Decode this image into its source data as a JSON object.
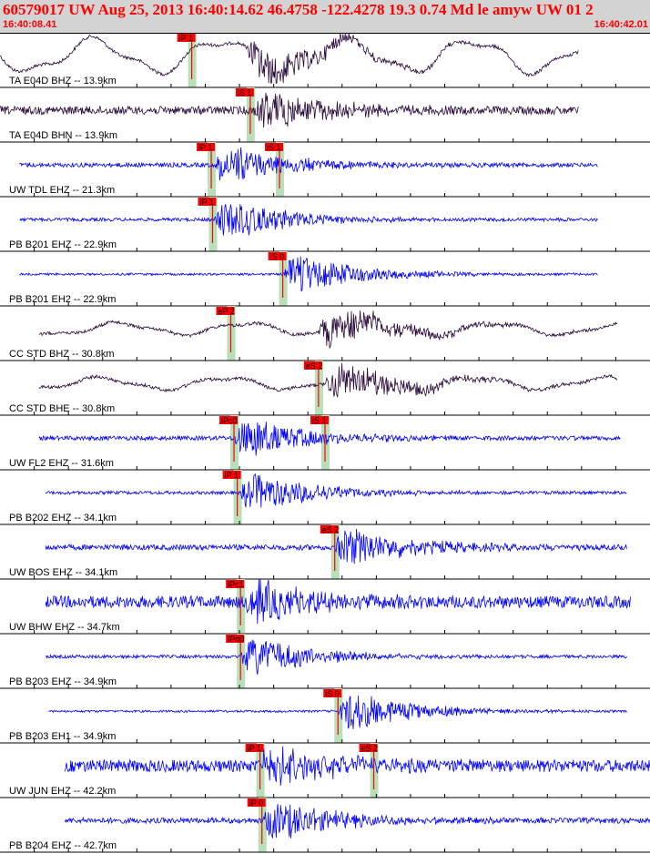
{
  "header": {
    "title": "60579017 UW Aug 25, 2013 16:40:14.62    46.4758 -122.4278 19.3 0.74 Md le amyw UW 01   2",
    "start_time": "16:40:08.41",
    "end_time": "16:40:42.01"
  },
  "colors": {
    "header_bg": "#d3d3d3",
    "header_text": "#ff0000",
    "trace_broadband": "#2a0a3a",
    "trace_short_period": "#0000ff",
    "pick_flag": "#ff0000",
    "pick_window": "#b8e0b8",
    "grid": "#000000"
  },
  "chart_data": {
    "type": "line",
    "xlim": [
      "16:40:08.41",
      "16:40:42.01"
    ],
    "traces": [
      {
        "label": "TA E04D BHZ -- 13.9km",
        "color": "broadband",
        "start": 0.0,
        "end": 0.89,
        "amp": 0.55,
        "longperiod": true,
        "onset": 0.38,
        "pick_p": {
          "text": "iP 1",
          "pos": 0.295
        },
        "pick_s": null
      },
      {
        "label": "TA E04D BHN -- 13.9km",
        "color": "broadband",
        "start": 0.0,
        "end": 0.89,
        "amp": 0.15,
        "longperiod": false,
        "onset": 0.39,
        "pick_p": null,
        "pick_s": {
          "text": "iS 1",
          "pos": 0.385
        }
      },
      {
        "label": "UW TDL EHZ -- 21.3km",
        "color": "short",
        "start": 0.03,
        "end": 0.92,
        "amp": 0.08,
        "longperiod": false,
        "onset": 0.33,
        "pick_p": {
          "text": "iP 1",
          "pos": 0.325
        },
        "pick_s": {
          "text": "iS 1",
          "pos": 0.43
        }
      },
      {
        "label": "PB B201 EHZ -- 22.9km",
        "color": "short",
        "start": 0.03,
        "end": 0.92,
        "amp": 0.06,
        "longperiod": false,
        "onset": 0.33,
        "pick_p": {
          "text": "iP 1",
          "pos": 0.327
        },
        "pick_s": null
      },
      {
        "label": "PB B201 EH2 -- 22.9km",
        "color": "short",
        "start": 0.03,
        "end": 0.92,
        "amp": 0.04,
        "longperiod": false,
        "onset": 0.435,
        "pick_p": null,
        "pick_s": {
          "text": "iS 0",
          "pos": 0.435
        }
      },
      {
        "label": "CC STD BHZ -- 30.8km",
        "color": "broadband",
        "start": 0.06,
        "end": 0.95,
        "amp": 0.2,
        "longperiod": true,
        "onset": 0.49,
        "pick_p": {
          "text": "eP 2",
          "pos": 0.355
        },
        "pick_s": null
      },
      {
        "label": "CC STD BHE -- 30.8km",
        "color": "broadband",
        "start": 0.06,
        "end": 0.95,
        "amp": 0.2,
        "longperiod": true,
        "onset": 0.5,
        "pick_p": null,
        "pick_s": {
          "text": "eS 2",
          "pos": 0.49
        }
      },
      {
        "label": "UW FL2 EHZ -- 31.6km",
        "color": "short",
        "start": 0.06,
        "end": 0.955,
        "amp": 0.08,
        "longperiod": false,
        "onset": 0.36,
        "pick_p": {
          "text": "iPc0",
          "pos": 0.36
        },
        "pick_s": {
          "text": "iS 1",
          "pos": 0.5
        }
      },
      {
        "label": "PB B202 EHZ -- 34.1km",
        "color": "short",
        "start": 0.07,
        "end": 0.965,
        "amp": 0.06,
        "longperiod": false,
        "onset": 0.37,
        "pick_p": {
          "text": "iP 1",
          "pos": 0.365
        },
        "pick_s": null
      },
      {
        "label": "UW BOS EHZ -- 34.1km",
        "color": "short",
        "start": 0.07,
        "end": 0.965,
        "amp": 0.1,
        "longperiod": false,
        "onset": 0.515,
        "pick_p": null,
        "pick_s": {
          "text": "eS 2",
          "pos": 0.515
        }
      },
      {
        "label": "UW BHW EHZ -- 34.7km",
        "color": "short",
        "start": 0.07,
        "end": 0.97,
        "amp": 0.22,
        "longperiod": false,
        "onset": 0.375,
        "pick_p": {
          "text": "iPc1",
          "pos": 0.37
        },
        "pick_s": null
      },
      {
        "label": "PB B203 EHZ -- 34.9km",
        "color": "short",
        "start": 0.07,
        "end": 0.965,
        "amp": 0.06,
        "longperiod": false,
        "onset": 0.37,
        "pick_p": {
          "text": "iPd0",
          "pos": 0.37
        },
        "pick_s": null
      },
      {
        "label": "PB B203 EH1 -- 34.9km",
        "color": "short",
        "start": 0.075,
        "end": 0.965,
        "amp": 0.04,
        "longperiod": false,
        "onset": 0.52,
        "pick_p": null,
        "pick_s": {
          "text": "iS 0",
          "pos": 0.52
        }
      },
      {
        "label": "UW JUN EHZ -- 42.2km",
        "color": "short",
        "start": 0.1,
        "end": 1.0,
        "amp": 0.22,
        "longperiod": false,
        "onset": 0.4,
        "pick_p": {
          "text": "iP 1",
          "pos": 0.4
        },
        "pick_s": {
          "text": "eS 2",
          "pos": 0.575
        }
      },
      {
        "label": "PB B204 EHZ -- 42.7km",
        "color": "short",
        "start": 0.1,
        "end": 1.0,
        "amp": 0.1,
        "longperiod": false,
        "onset": 0.405,
        "pick_p": {
          "text": "iP 0",
          "pos": 0.403
        },
        "pick_s": null
      }
    ]
  }
}
